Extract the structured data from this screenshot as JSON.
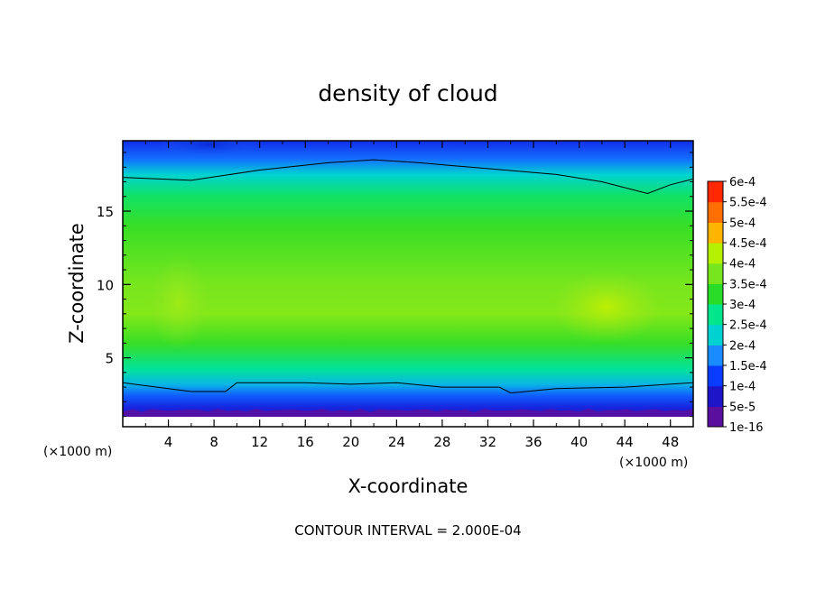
{
  "chart_data": {
    "type": "heatmap",
    "title": "density of cloud",
    "xlabel": "X-coordinate",
    "ylabel": "Z-coordinate",
    "x_unit": "(×1000 m)",
    "y_unit": "(×1000 m)",
    "xlim": [
      0,
      50
    ],
    "ylim": [
      0.3,
      19.8
    ],
    "x_ticks": [
      4,
      8,
      12,
      16,
      20,
      24,
      28,
      32,
      36,
      40,
      44,
      48
    ],
    "y_ticks": [
      5,
      10,
      15
    ],
    "note": "CONTOUR INTERVAL = 2.000E-04",
    "colorbar": {
      "labels": [
        "1e-16",
        "5e-5",
        "1e-4",
        "1.5e-4",
        "2e-4",
        "2.5e-4",
        "3e-4",
        "3.5e-4",
        "4e-4",
        "4.5e-4",
        "5e-4",
        "5.5e-4",
        "6e-4"
      ],
      "colors": [
        "#5a0f9e",
        "#1e14c8",
        "#0a3cff",
        "#1a8cff",
        "#00d2d2",
        "#00e68c",
        "#28dc28",
        "#78e61e",
        "#b4f000",
        "#ffb400",
        "#ff6e00",
        "#ff2800",
        "#ff8080"
      ]
    },
    "z_profile": [
      {
        "z": 0.3,
        "value": 0.0
      },
      {
        "z": 0.8,
        "value": 3e-05
      },
      {
        "z": 1.6,
        "value": 7e-05
      },
      {
        "z": 2.4,
        "value": 0.00012
      },
      {
        "z": 3.2,
        "value": 0.00018
      },
      {
        "z": 4.2,
        "value": 0.00024
      },
      {
        "z": 6.0,
        "value": 0.00031
      },
      {
        "z": 8.0,
        "value": 0.00036
      },
      {
        "z": 10.0,
        "value": 0.00035
      },
      {
        "z": 12.0,
        "value": 0.00033
      },
      {
        "z": 14.0,
        "value": 0.00031
      },
      {
        "z": 16.0,
        "value": 0.00027
      },
      {
        "z": 17.5,
        "value": 0.0002
      },
      {
        "z": 18.6,
        "value": 0.00013
      },
      {
        "z": 19.8,
        "value": 8e-05
      }
    ],
    "contour_2e-4_upper": [
      {
        "x": 0,
        "z": 17.3
      },
      {
        "x": 6,
        "z": 17.1
      },
      {
        "x": 12,
        "z": 17.8
      },
      {
        "x": 18,
        "z": 18.3
      },
      {
        "x": 22,
        "z": 18.5
      },
      {
        "x": 26,
        "z": 18.3
      },
      {
        "x": 32,
        "z": 17.9
      },
      {
        "x": 38,
        "z": 17.5
      },
      {
        "x": 42,
        "z": 17.0
      },
      {
        "x": 46,
        "z": 16.2
      },
      {
        "x": 48,
        "z": 16.8
      },
      {
        "x": 50,
        "z": 17.2
      }
    ],
    "contour_2e-4_lower": [
      {
        "x": 0,
        "z": 3.3
      },
      {
        "x": 6,
        "z": 2.7
      },
      {
        "x": 9,
        "z": 2.7
      },
      {
        "x": 10,
        "z": 3.3
      },
      {
        "x": 16,
        "z": 3.3
      },
      {
        "x": 20,
        "z": 3.2
      },
      {
        "x": 24,
        "z": 3.3
      },
      {
        "x": 28,
        "z": 3.0
      },
      {
        "x": 33,
        "z": 3.0
      },
      {
        "x": 34,
        "z": 2.6
      },
      {
        "x": 38,
        "z": 2.9
      },
      {
        "x": 44,
        "z": 3.0
      },
      {
        "x": 50,
        "z": 3.3
      }
    ],
    "maxima": [
      {
        "x": 44,
        "z": 8.2,
        "value": 0.0004
      },
      {
        "x": 5,
        "z": 8.5,
        "value": 0.00037
      }
    ]
  }
}
